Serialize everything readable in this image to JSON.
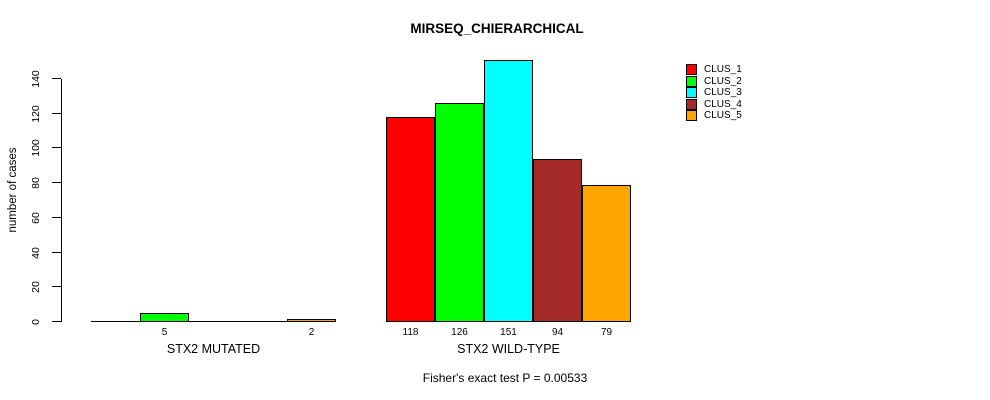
{
  "chart_data": {
    "type": "bar",
    "title": "MIRSEQ_CHIERARCHICAL",
    "categories": [
      "STX2 MUTATED",
      "STX2 WILD-TYPE"
    ],
    "series": [
      {
        "name": "CLUS_1",
        "color": "#FF0000",
        "values": [
          0,
          118
        ]
      },
      {
        "name": "CLUS_2",
        "color": "#00FF00",
        "values": [
          5,
          126
        ]
      },
      {
        "name": "CLUS_3",
        "color": "#00FFFF",
        "values": [
          0,
          151
        ]
      },
      {
        "name": "CLUS_4",
        "color": "#A52A2A",
        "values": [
          0,
          94
        ]
      },
      {
        "name": "CLUS_5",
        "color": "#FFA500",
        "values": [
          2,
          79
        ]
      }
    ],
    "bar_value_labels": [
      [
        "",
        "5",
        "",
        "",
        "2"
      ],
      [
        "118",
        "126",
        "151",
        "94",
        "79"
      ]
    ],
    "xlabel": "",
    "ylabel": "number of cases",
    "ylim": [
      0,
      151
    ],
    "yticks": [
      0,
      20,
      40,
      60,
      80,
      100,
      120,
      140
    ],
    "grid": false,
    "legend_position": "top-right",
    "annotation": "Fisher's exact test P = 0.00533"
  }
}
